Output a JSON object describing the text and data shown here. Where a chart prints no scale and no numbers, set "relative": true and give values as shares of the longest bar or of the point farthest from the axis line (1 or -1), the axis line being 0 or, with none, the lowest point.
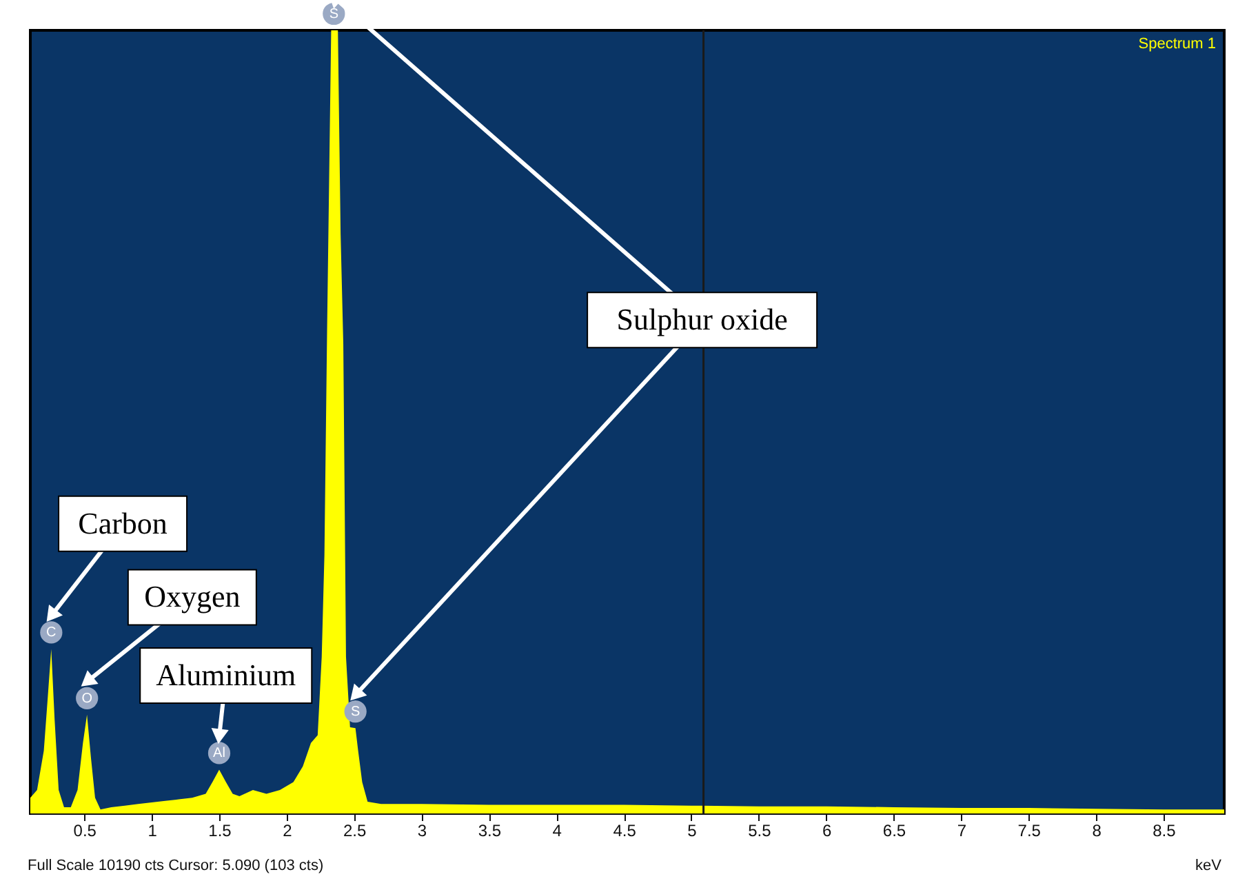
{
  "chart_data": {
    "type": "area",
    "relative": true,
    "x": [
      0.1,
      0.15,
      0.2,
      0.23,
      0.255,
      0.28,
      0.31,
      0.35,
      0.4,
      0.45,
      0.49,
      0.52,
      0.55,
      0.58,
      0.62,
      0.7,
      0.8,
      0.9,
      1.0,
      1.1,
      1.2,
      1.3,
      1.4,
      1.45,
      1.5,
      1.55,
      1.6,
      1.65,
      1.75,
      1.85,
      1.95,
      2.05,
      2.12,
      2.18,
      2.23,
      2.26,
      2.28,
      2.3,
      2.33,
      2.38,
      2.4,
      2.42,
      2.44,
      2.47,
      2.51,
      2.53,
      2.56,
      2.6,
      2.7,
      3.0,
      3.5,
      4.0,
      4.5,
      5.0,
      5.5,
      6.0,
      6.5,
      7.0,
      7.5,
      8.0,
      8.5,
      8.95
    ],
    "values": [
      0.02,
      0.03,
      0.08,
      0.15,
      0.21,
      0.12,
      0.03,
      0.008,
      0.008,
      0.03,
      0.09,
      0.126,
      0.07,
      0.02,
      0.005,
      0.008,
      0.01,
      0.012,
      0.014,
      0.016,
      0.018,
      0.02,
      0.025,
      0.04,
      0.056,
      0.04,
      0.025,
      0.022,
      0.03,
      0.025,
      0.03,
      0.04,
      0.06,
      0.09,
      0.1,
      0.2,
      0.33,
      0.62,
      1.0,
      1.0,
      0.74,
      0.6,
      0.2,
      0.11,
      0.109,
      0.08,
      0.04,
      0.015,
      0.012,
      0.012,
      0.011,
      0.011,
      0.011,
      0.01,
      0.009,
      0.009,
      0.008,
      0.007,
      0.007,
      0.006,
      0.005,
      0.005
    ],
    "color": "#ffff00",
    "xlim": [
      0.1,
      8.95
    ],
    "xticks": [
      0.5,
      1,
      1.5,
      2,
      2.5,
      3,
      3.5,
      4,
      4.5,
      5,
      5.5,
      6,
      6.5,
      7,
      7.5,
      8,
      8.5
    ],
    "xlabel": "keV",
    "grid": false,
    "ref_lines": [
      {
        "axis": "x",
        "value": 5.09,
        "color": "#1a1a1a"
      }
    ],
    "annotations": [
      "Spectrum 1",
      "Full Scale 10190 cts Cursor: 5.090  (103 cts)",
      "Carbon",
      "Oxygen",
      "Aluminium",
      "Sulphur oxide",
      {
        "text": "C",
        "x": 0.255,
        "y": 0.21
      },
      {
        "text": "O",
        "x": 0.52,
        "y": 0.126
      },
      {
        "text": "Al",
        "x": 1.5,
        "y": 0.056
      },
      {
        "text": "S",
        "x": 2.35,
        "y": 1.0
      },
      {
        "text": "S",
        "x": 2.51,
        "y": 0.109
      }
    ]
  }
}
